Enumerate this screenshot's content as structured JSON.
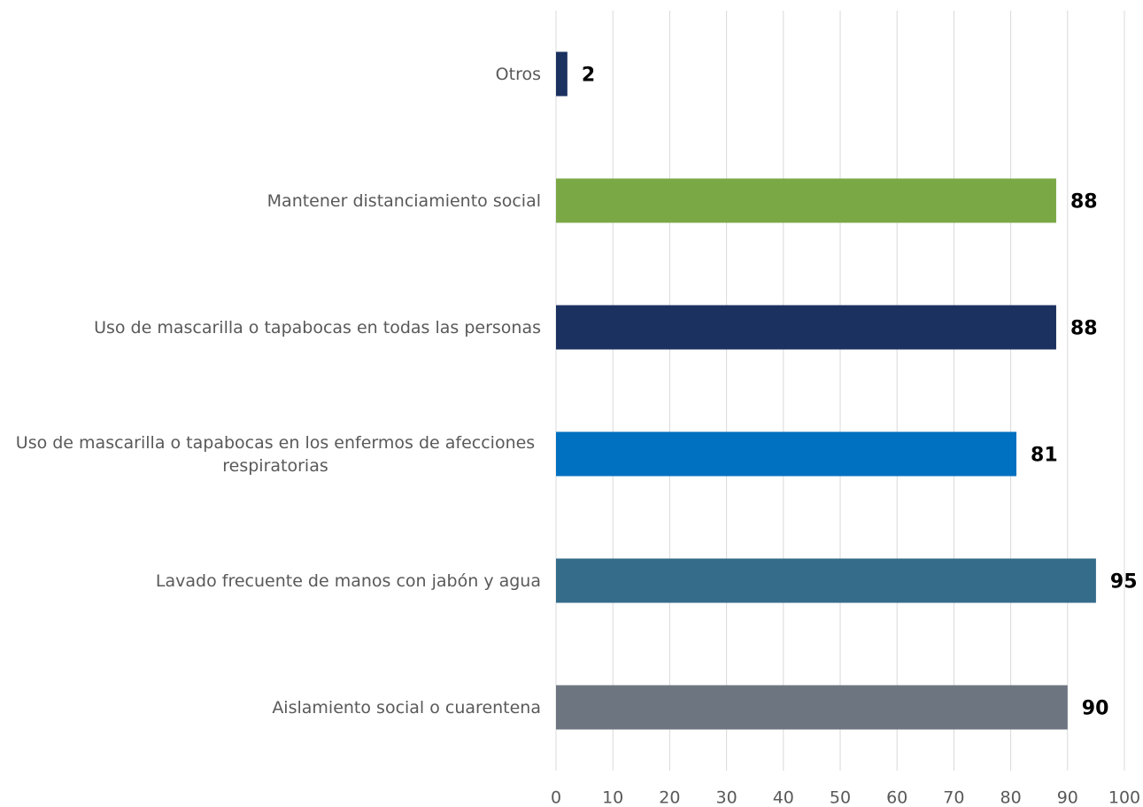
{
  "chart_data": {
    "type": "bar",
    "orientation": "horizontal",
    "categories": [
      "Otros",
      "Mantener distanciamiento social",
      "Uso de mascarilla o tapabocas en todas las personas",
      "Uso de mascarilla o tapabocas en los enfermos de afecciones respiratorias",
      "Lavado frecuente de manos con jabón y agua",
      "Aislamiento social o cuarentena"
    ],
    "values": [
      2,
      88,
      88,
      81,
      95,
      90
    ],
    "colors": [
      "#1b3160",
      "#7aa845",
      "#1b3160",
      "#0070c0",
      "#356c8a",
      "#6d7580"
    ],
    "xlim": [
      0,
      100
    ],
    "xticks": [
      0,
      10,
      20,
      30,
      40,
      50,
      60,
      70,
      80,
      90,
      100
    ],
    "grid": true
  }
}
